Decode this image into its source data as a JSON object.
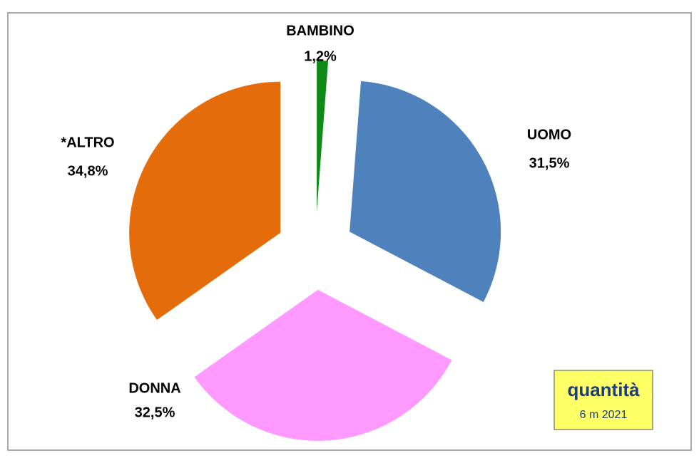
{
  "chart_data": {
    "type": "pie",
    "categories": [
      "BAMBINO",
      "UOMO",
      "DONNA",
      "*ALTRO"
    ],
    "values": [
      1.2,
      31.5,
      32.5,
      34.8
    ],
    "value_labels": [
      "1,2%",
      "31,5%",
      "32,5%",
      "34,8%"
    ],
    "colors": [
      "#0f8a17",
      "#4f81bd",
      "#ff99ff",
      "#e46c0a"
    ],
    "annotation": {
      "title": "quantità",
      "subtitle": "6 m 2021"
    }
  }
}
